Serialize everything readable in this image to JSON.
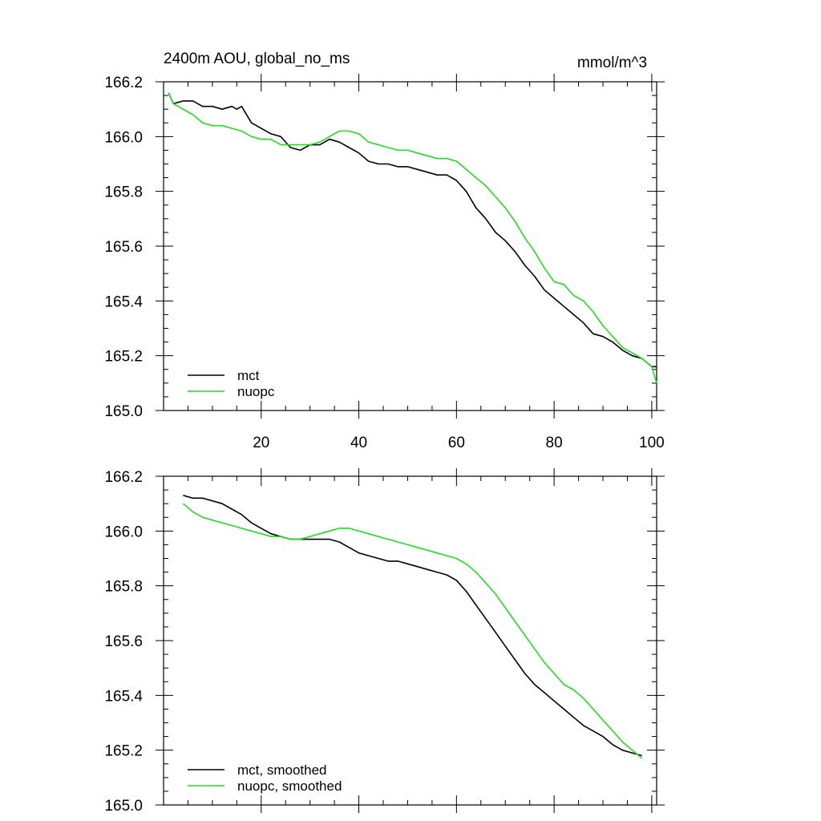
{
  "figure": {
    "title_left": "2400m AOU, global_no_ms",
    "title_right": "mmol/m^3",
    "colors": {
      "mct": "#000000",
      "nuopc": "#22dd22"
    }
  },
  "chart_data": [
    {
      "type": "line",
      "name": "raw",
      "title": "2400m AOU, global_no_ms",
      "units": "mmol/m^3",
      "xlabel": "",
      "ylabel": "",
      "xlim": [
        0,
        101
      ],
      "ylim": [
        165.0,
        166.2
      ],
      "xticks": [
        20,
        40,
        60,
        80,
        100
      ],
      "xtick_labels": [
        "20",
        "40",
        "60",
        "80",
        "100"
      ],
      "yticks": [
        165.0,
        165.2,
        165.4,
        165.6,
        165.8,
        166.0,
        166.2
      ],
      "ytick_labels": [
        "165.0",
        "165.2",
        "165.4",
        "165.6",
        "165.8",
        "166.0",
        "166.2"
      ],
      "legend": {
        "location": "bottom-left",
        "entries": [
          "mct",
          "nuopc"
        ]
      },
      "series": [
        {
          "name": "mct",
          "color": "#000000",
          "x": [
            1,
            2,
            4,
            6,
            8,
            10,
            12,
            14,
            15,
            16,
            18,
            20,
            22,
            24,
            26,
            28,
            30,
            32,
            34,
            36,
            38,
            40,
            42,
            44,
            46,
            48,
            50,
            52,
            54,
            56,
            58,
            60,
            62,
            64,
            66,
            68,
            70,
            72,
            74,
            76,
            78,
            80,
            82,
            84,
            86,
            88,
            90,
            92,
            94,
            96,
            98,
            100,
            101
          ],
          "y": [
            166.16,
            166.12,
            166.13,
            166.13,
            166.11,
            166.11,
            166.1,
            166.11,
            166.1,
            166.11,
            166.05,
            166.03,
            166.01,
            166.0,
            165.96,
            165.95,
            165.97,
            165.97,
            165.99,
            165.98,
            165.96,
            165.94,
            165.91,
            165.9,
            165.9,
            165.89,
            165.89,
            165.88,
            165.87,
            165.86,
            165.86,
            165.84,
            165.8,
            165.74,
            165.7,
            165.65,
            165.62,
            165.58,
            165.53,
            165.49,
            165.44,
            165.41,
            165.38,
            165.35,
            165.32,
            165.28,
            165.27,
            165.25,
            165.22,
            165.2,
            165.19,
            165.16,
            165.16
          ]
        },
        {
          "name": "nuopc",
          "color": "#22dd22",
          "x": [
            1,
            2,
            4,
            6,
            8,
            10,
            12,
            14,
            16,
            18,
            20,
            22,
            24,
            26,
            28,
            30,
            32,
            34,
            36,
            38,
            40,
            42,
            44,
            46,
            48,
            50,
            52,
            54,
            56,
            58,
            60,
            62,
            64,
            66,
            68,
            70,
            72,
            74,
            76,
            78,
            80,
            82,
            84,
            86,
            88,
            90,
            92,
            94,
            96,
            98,
            100,
            101
          ],
          "y": [
            166.16,
            166.12,
            166.1,
            166.08,
            166.05,
            166.04,
            166.04,
            166.03,
            166.02,
            166.0,
            165.99,
            165.99,
            165.97,
            165.97,
            165.97,
            165.97,
            165.98,
            166.0,
            166.02,
            166.02,
            166.01,
            165.98,
            165.97,
            165.96,
            165.95,
            165.95,
            165.94,
            165.93,
            165.92,
            165.92,
            165.91,
            165.88,
            165.85,
            165.82,
            165.78,
            165.74,
            165.69,
            165.63,
            165.58,
            165.52,
            165.47,
            165.46,
            165.42,
            165.4,
            165.36,
            165.31,
            165.27,
            165.23,
            165.21,
            165.19,
            165.16,
            165.1
          ]
        }
      ]
    },
    {
      "type": "line",
      "name": "smoothed",
      "title": "",
      "xlabel": "",
      "ylabel": "",
      "xlim": [
        0,
        101
      ],
      "ylim": [
        165.0,
        166.2
      ],
      "xticks": [
        20,
        40,
        60,
        80,
        100
      ],
      "yticks": [
        165.0,
        165.2,
        165.4,
        165.6,
        165.8,
        166.0,
        166.2
      ],
      "ytick_labels": [
        "165.0",
        "165.2",
        "165.4",
        "165.6",
        "165.8",
        "166.0",
        "166.2"
      ],
      "legend": {
        "location": "bottom-left",
        "entries": [
          "mct, smoothed",
          "nuopc, smoothed"
        ]
      },
      "series": [
        {
          "name": "mct, smoothed",
          "color": "#000000",
          "x": [
            4,
            6,
            8,
            10,
            12,
            14,
            16,
            18,
            20,
            22,
            24,
            26,
            28,
            30,
            32,
            34,
            36,
            38,
            40,
            42,
            44,
            46,
            48,
            50,
            52,
            54,
            56,
            58,
            60,
            62,
            64,
            66,
            68,
            70,
            72,
            74,
            76,
            78,
            80,
            82,
            84,
            86,
            88,
            90,
            92,
            94,
            96,
            98
          ],
          "y": [
            166.13,
            166.12,
            166.12,
            166.11,
            166.1,
            166.08,
            166.06,
            166.03,
            166.01,
            165.99,
            165.98,
            165.97,
            165.97,
            165.97,
            165.97,
            165.97,
            165.96,
            165.94,
            165.92,
            165.91,
            165.9,
            165.89,
            165.89,
            165.88,
            165.87,
            165.86,
            165.85,
            165.84,
            165.82,
            165.78,
            165.73,
            165.68,
            165.63,
            165.58,
            165.53,
            165.48,
            165.44,
            165.41,
            165.38,
            165.35,
            165.32,
            165.29,
            165.27,
            165.25,
            165.22,
            165.2,
            165.19,
            165.18
          ]
        },
        {
          "name": "nuopc, smoothed",
          "color": "#22dd22",
          "x": [
            4,
            6,
            8,
            10,
            12,
            14,
            16,
            18,
            20,
            22,
            24,
            26,
            28,
            30,
            32,
            34,
            36,
            38,
            40,
            42,
            44,
            46,
            48,
            50,
            52,
            54,
            56,
            58,
            60,
            62,
            64,
            66,
            68,
            70,
            72,
            74,
            76,
            78,
            80,
            82,
            84,
            86,
            88,
            90,
            92,
            94,
            96,
            98
          ],
          "y": [
            166.1,
            166.07,
            166.05,
            166.04,
            166.03,
            166.02,
            166.01,
            166.0,
            165.99,
            165.98,
            165.98,
            165.97,
            165.97,
            165.98,
            165.99,
            166.0,
            166.01,
            166.01,
            166.0,
            165.99,
            165.98,
            165.97,
            165.96,
            165.95,
            165.94,
            165.93,
            165.92,
            165.91,
            165.9,
            165.88,
            165.85,
            165.81,
            165.77,
            165.72,
            165.67,
            165.62,
            165.57,
            165.52,
            165.48,
            165.44,
            165.42,
            165.39,
            165.35,
            165.31,
            165.27,
            165.23,
            165.2,
            165.17
          ]
        }
      ]
    }
  ]
}
